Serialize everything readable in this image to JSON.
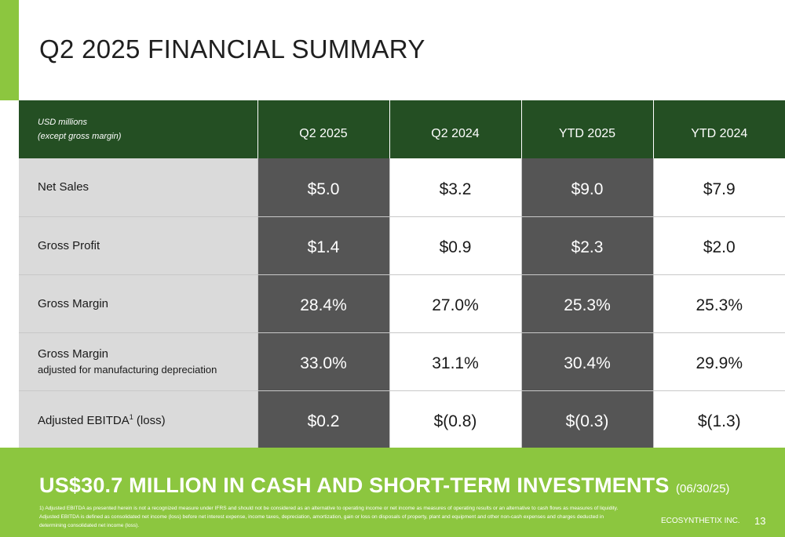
{
  "title": "Q2 2025 FINANCIAL SUMMARY",
  "table": {
    "units_line1": "USD millions",
    "units_line2": "(except gross margin)",
    "columns": [
      "Q2 2025",
      "Q2 2024",
      "YTD 2025",
      "YTD 2024"
    ],
    "rows": [
      {
        "label": "Net Sales",
        "sublabel": "",
        "values": [
          "$5.0",
          "$3.2",
          "$9.0",
          "$7.9"
        ]
      },
      {
        "label": "Gross Profit",
        "sublabel": "",
        "values": [
          "$1.4",
          "$0.9",
          "$2.3",
          "$2.0"
        ]
      },
      {
        "label": "Gross Margin",
        "sublabel": "",
        "values": [
          "28.4%",
          "27.0%",
          "25.3%",
          "25.3%"
        ]
      },
      {
        "label": "Gross Margin",
        "sublabel": "adjusted for manufacturing depreciation",
        "values": [
          "33.0%",
          "31.1%",
          "30.4%",
          "29.9%"
        ]
      },
      {
        "label": "Adjusted EBITDA",
        "superscript": "1",
        "label_suffix": " (loss)",
        "sublabel": "",
        "values": [
          "$0.2",
          "$(0.8)",
          "$(0.3)",
          "$(1.3)"
        ]
      }
    ]
  },
  "footer": {
    "headline": "US$30.7 MILLION IN CASH AND SHORT-TERM INVESTMENTS",
    "headline_date": "(06/30/25)",
    "footnote": "1) Adjusted EBITDA as presented herein is not a recognized measure under IFRS and should not be considered as an alternative to operating income or net income as measures of operating results or an alternative to cash flows as measures of liquidity.  Adjusted EBITDA is defined as consolidated net income (loss) before net interest expense, income taxes, depreciation, amortization, gain or loss on disposals of property, plant and equipment and other non-cash expenses and charges deducted in determining consolidated net income (loss).",
    "company": "ECOSYNTHETIX INC.",
    "page_number": "13"
  },
  "colors": {
    "accent_green": "#8cc63f",
    "header_green": "#244f23",
    "dark_cell": "#555555",
    "label_gray": "#dadada"
  }
}
